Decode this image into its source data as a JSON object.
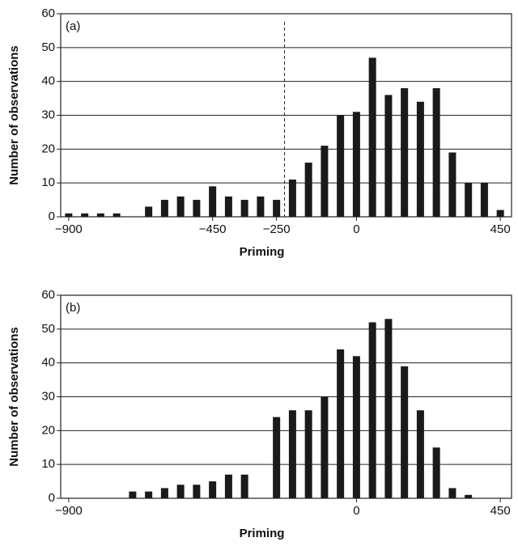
{
  "chart_data": [
    {
      "type": "bar",
      "panel_label": "(a)",
      "x_label": "Priming",
      "y_label": "Number of observations",
      "x": [
        -900,
        -850,
        -800,
        -750,
        -650,
        -600,
        -550,
        -500,
        -450,
        -400,
        -350,
        -300,
        -250,
        -200,
        -150,
        -100,
        -50,
        0,
        50,
        100,
        150,
        200,
        250,
        300,
        350,
        400,
        450
      ],
      "values": [
        1,
        1,
        1,
        1,
        3,
        5,
        6,
        5,
        9,
        6,
        5,
        6,
        5,
        11,
        16,
        21,
        30,
        31,
        47,
        36,
        38,
        34,
        38,
        19,
        10,
        10,
        2
      ],
      "color": "#1a1a1a",
      "reference_line": -225,
      "xlim": [
        -925,
        485
      ],
      "ylim": [
        0,
        60
      ],
      "xticks": [
        {
          "value": -900,
          "label": "−900"
        },
        {
          "value": -450,
          "label": "−450"
        },
        {
          "value": -250,
          "label": "−250"
        },
        0,
        450
      ],
      "yticks": [
        0,
        10,
        20,
        30,
        40,
        50,
        60
      ],
      "grid": true
    },
    {
      "type": "bar",
      "panel_label": "(b)",
      "x_label": "Priming",
      "y_label": "Number of observations",
      "x": [
        -700,
        -650,
        -600,
        -550,
        -500,
        -450,
        -400,
        -350,
        -250,
        -200,
        -150,
        -100,
        -50,
        0,
        50,
        100,
        150,
        200,
        250,
        300,
        350
      ],
      "values": [
        2,
        2,
        3,
        4,
        4,
        5,
        7,
        7,
        24,
        26,
        26,
        30,
        44,
        42,
        52,
        53,
        39,
        26,
        15,
        3,
        1
      ],
      "color": "#1a1a1a",
      "xlim": [
        -925,
        485
      ],
      "ylim": [
        0,
        60
      ],
      "xticks": [
        {
          "value": -900,
          "label": "−900"
        },
        0,
        450
      ],
      "yticks": [
        0,
        10,
        20,
        30,
        40,
        50,
        60
      ],
      "grid": true
    }
  ]
}
